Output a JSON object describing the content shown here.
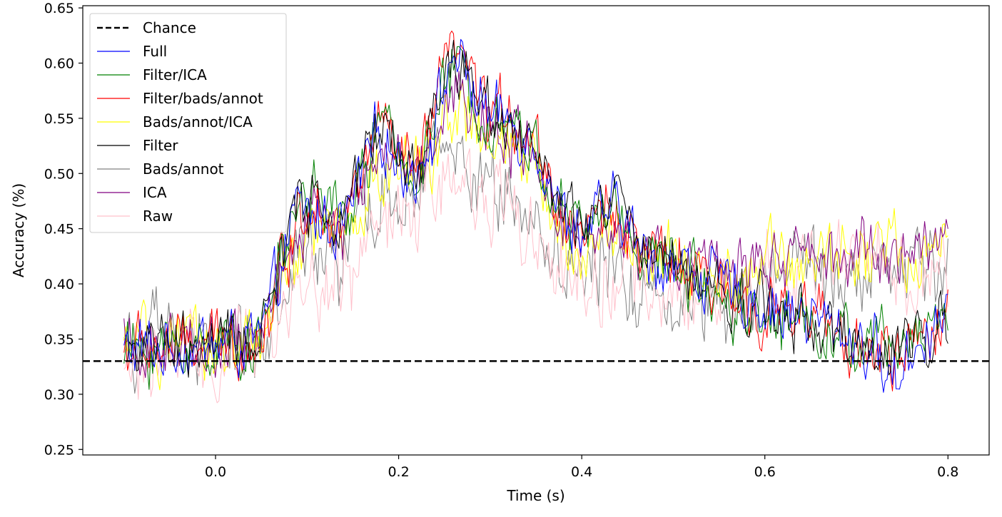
{
  "chart_data": {
    "type": "line",
    "title": "",
    "xlabel": "Time (s)",
    "ylabel": "Accuracy (%)",
    "xlim": [
      -0.145,
      0.845
    ],
    "ylim": [
      0.245,
      0.652
    ],
    "xticks": [
      0.0,
      0.2,
      0.4,
      0.6,
      0.8
    ],
    "xtick_labels": [
      "0.0",
      "0.2",
      "0.4",
      "0.6",
      "0.8"
    ],
    "yticks": [
      0.25,
      0.3,
      0.35,
      0.4,
      0.45,
      0.5,
      0.55,
      0.6,
      0.65
    ],
    "ytick_labels": [
      "0.25",
      "0.30",
      "0.35",
      "0.40",
      "0.45",
      "0.50",
      "0.55",
      "0.60",
      "0.65"
    ],
    "grid": false,
    "legend_position": "top-left",
    "chance": {
      "name": "Chance",
      "y": 0.33,
      "color": "#000000",
      "style": "dashed"
    },
    "x_start": -0.1,
    "x_end": 0.8,
    "series": [
      {
        "name": "Full",
        "color": "#0000ff",
        "noise": 0.022,
        "anchors": [
          [
            -0.1,
            0.34
          ],
          [
            0.0,
            0.345
          ],
          [
            0.05,
            0.35
          ],
          [
            0.07,
            0.41
          ],
          [
            0.09,
            0.47
          ],
          [
            0.11,
            0.46
          ],
          [
            0.14,
            0.45
          ],
          [
            0.16,
            0.5
          ],
          [
            0.18,
            0.54
          ],
          [
            0.2,
            0.51
          ],
          [
            0.22,
            0.5
          ],
          [
            0.24,
            0.55
          ],
          [
            0.26,
            0.61
          ],
          [
            0.28,
            0.58
          ],
          [
            0.3,
            0.55
          ],
          [
            0.32,
            0.55
          ],
          [
            0.35,
            0.53
          ],
          [
            0.38,
            0.46
          ],
          [
            0.4,
            0.45
          ],
          [
            0.44,
            0.47
          ],
          [
            0.47,
            0.42
          ],
          [
            0.5,
            0.42
          ],
          [
            0.55,
            0.4
          ],
          [
            0.6,
            0.38
          ],
          [
            0.65,
            0.37
          ],
          [
            0.7,
            0.35
          ],
          [
            0.72,
            0.34
          ],
          [
            0.74,
            0.31
          ],
          [
            0.76,
            0.34
          ],
          [
            0.8,
            0.38
          ]
        ]
      },
      {
        "name": "Filter/ICA",
        "color": "#008000",
        "noise": 0.022,
        "anchors": [
          [
            -0.1,
            0.34
          ],
          [
            0.0,
            0.345
          ],
          [
            0.05,
            0.35
          ],
          [
            0.07,
            0.42
          ],
          [
            0.09,
            0.47
          ],
          [
            0.11,
            0.49
          ],
          [
            0.14,
            0.45
          ],
          [
            0.16,
            0.5
          ],
          [
            0.18,
            0.55
          ],
          [
            0.2,
            0.51
          ],
          [
            0.22,
            0.5
          ],
          [
            0.24,
            0.55
          ],
          [
            0.26,
            0.6
          ],
          [
            0.28,
            0.57
          ],
          [
            0.3,
            0.55
          ],
          [
            0.32,
            0.55
          ],
          [
            0.35,
            0.52
          ],
          [
            0.38,
            0.46
          ],
          [
            0.4,
            0.45
          ],
          [
            0.44,
            0.47
          ],
          [
            0.47,
            0.42
          ],
          [
            0.5,
            0.42
          ],
          [
            0.55,
            0.39
          ],
          [
            0.6,
            0.37
          ],
          [
            0.65,
            0.37
          ],
          [
            0.7,
            0.34
          ],
          [
            0.72,
            0.35
          ],
          [
            0.74,
            0.34
          ],
          [
            0.76,
            0.35
          ],
          [
            0.8,
            0.38
          ]
        ]
      },
      {
        "name": "Filter/bads/annot",
        "color": "#ff0000",
        "noise": 0.022,
        "anchors": [
          [
            -0.1,
            0.34
          ],
          [
            0.0,
            0.345
          ],
          [
            0.05,
            0.35
          ],
          [
            0.07,
            0.41
          ],
          [
            0.09,
            0.46
          ],
          [
            0.11,
            0.48
          ],
          [
            0.14,
            0.45
          ],
          [
            0.16,
            0.5
          ],
          [
            0.18,
            0.55
          ],
          [
            0.2,
            0.51
          ],
          [
            0.22,
            0.5
          ],
          [
            0.24,
            0.56
          ],
          [
            0.26,
            0.62
          ],
          [
            0.28,
            0.58
          ],
          [
            0.3,
            0.55
          ],
          [
            0.32,
            0.56
          ],
          [
            0.35,
            0.53
          ],
          [
            0.38,
            0.46
          ],
          [
            0.4,
            0.45
          ],
          [
            0.44,
            0.47
          ],
          [
            0.47,
            0.42
          ],
          [
            0.5,
            0.42
          ],
          [
            0.55,
            0.39
          ],
          [
            0.6,
            0.38
          ],
          [
            0.65,
            0.37
          ],
          [
            0.7,
            0.34
          ],
          [
            0.72,
            0.34
          ],
          [
            0.74,
            0.33
          ],
          [
            0.76,
            0.34
          ],
          [
            0.8,
            0.37
          ]
        ]
      },
      {
        "name": "Bads/annot/ICA",
        "color": "#ffff00",
        "noise": 0.025,
        "anchors": [
          [
            -0.1,
            0.34
          ],
          [
            0.0,
            0.345
          ],
          [
            0.05,
            0.35
          ],
          [
            0.07,
            0.39
          ],
          [
            0.09,
            0.42
          ],
          [
            0.11,
            0.45
          ],
          [
            0.14,
            0.44
          ],
          [
            0.16,
            0.47
          ],
          [
            0.18,
            0.5
          ],
          [
            0.2,
            0.5
          ],
          [
            0.22,
            0.5
          ],
          [
            0.24,
            0.53
          ],
          [
            0.26,
            0.56
          ],
          [
            0.28,
            0.54
          ],
          [
            0.3,
            0.52
          ],
          [
            0.32,
            0.52
          ],
          [
            0.35,
            0.5
          ],
          [
            0.38,
            0.44
          ],
          [
            0.4,
            0.43
          ],
          [
            0.44,
            0.45
          ],
          [
            0.47,
            0.42
          ],
          [
            0.5,
            0.42
          ],
          [
            0.55,
            0.41
          ],
          [
            0.6,
            0.42
          ],
          [
            0.65,
            0.42
          ],
          [
            0.7,
            0.43
          ],
          [
            0.72,
            0.44
          ],
          [
            0.74,
            0.43
          ],
          [
            0.76,
            0.42
          ],
          [
            0.8,
            0.43
          ]
        ]
      },
      {
        "name": "Filter",
        "color": "#000000",
        "noise": 0.022,
        "anchors": [
          [
            -0.1,
            0.34
          ],
          [
            0.0,
            0.345
          ],
          [
            0.05,
            0.35
          ],
          [
            0.07,
            0.42
          ],
          [
            0.09,
            0.47
          ],
          [
            0.11,
            0.48
          ],
          [
            0.14,
            0.45
          ],
          [
            0.16,
            0.51
          ],
          [
            0.18,
            0.55
          ],
          [
            0.2,
            0.52
          ],
          [
            0.22,
            0.5
          ],
          [
            0.24,
            0.56
          ],
          [
            0.26,
            0.61
          ],
          [
            0.28,
            0.58
          ],
          [
            0.3,
            0.56
          ],
          [
            0.32,
            0.55
          ],
          [
            0.35,
            0.52
          ],
          [
            0.38,
            0.46
          ],
          [
            0.4,
            0.45
          ],
          [
            0.44,
            0.48
          ],
          [
            0.47,
            0.42
          ],
          [
            0.5,
            0.42
          ],
          [
            0.55,
            0.39
          ],
          [
            0.6,
            0.38
          ],
          [
            0.65,
            0.37
          ],
          [
            0.7,
            0.34
          ],
          [
            0.72,
            0.33
          ],
          [
            0.74,
            0.33
          ],
          [
            0.76,
            0.35
          ],
          [
            0.8,
            0.37
          ]
        ]
      },
      {
        "name": "Bads/annot",
        "color": "#808080",
        "noise": 0.03,
        "anchors": [
          [
            -0.1,
            0.35
          ],
          [
            0.0,
            0.345
          ],
          [
            0.05,
            0.35
          ],
          [
            0.07,
            0.38
          ],
          [
            0.09,
            0.42
          ],
          [
            0.11,
            0.42
          ],
          [
            0.14,
            0.42
          ],
          [
            0.16,
            0.45
          ],
          [
            0.18,
            0.47
          ],
          [
            0.2,
            0.48
          ],
          [
            0.22,
            0.49
          ],
          [
            0.24,
            0.51
          ],
          [
            0.26,
            0.52
          ],
          [
            0.28,
            0.5
          ],
          [
            0.3,
            0.49
          ],
          [
            0.32,
            0.48
          ],
          [
            0.35,
            0.46
          ],
          [
            0.38,
            0.42
          ],
          [
            0.4,
            0.41
          ],
          [
            0.44,
            0.41
          ],
          [
            0.47,
            0.39
          ],
          [
            0.5,
            0.39
          ],
          [
            0.55,
            0.39
          ],
          [
            0.6,
            0.4
          ],
          [
            0.65,
            0.41
          ],
          [
            0.7,
            0.41
          ],
          [
            0.72,
            0.41
          ],
          [
            0.74,
            0.42
          ],
          [
            0.76,
            0.41
          ],
          [
            0.8,
            0.41
          ]
        ]
      },
      {
        "name": "ICA",
        "color": "#800080",
        "noise": 0.022,
        "anchors": [
          [
            -0.1,
            0.34
          ],
          [
            0.0,
            0.345
          ],
          [
            0.05,
            0.35
          ],
          [
            0.07,
            0.4
          ],
          [
            0.09,
            0.45
          ],
          [
            0.11,
            0.47
          ],
          [
            0.14,
            0.45
          ],
          [
            0.16,
            0.49
          ],
          [
            0.18,
            0.52
          ],
          [
            0.2,
            0.51
          ],
          [
            0.22,
            0.5
          ],
          [
            0.24,
            0.55
          ],
          [
            0.26,
            0.58
          ],
          [
            0.28,
            0.56
          ],
          [
            0.3,
            0.54
          ],
          [
            0.32,
            0.54
          ],
          [
            0.35,
            0.51
          ],
          [
            0.38,
            0.46
          ],
          [
            0.4,
            0.45
          ],
          [
            0.44,
            0.46
          ],
          [
            0.47,
            0.42
          ],
          [
            0.5,
            0.42
          ],
          [
            0.55,
            0.42
          ],
          [
            0.6,
            0.42
          ],
          [
            0.65,
            0.42
          ],
          [
            0.7,
            0.42
          ],
          [
            0.72,
            0.43
          ],
          [
            0.74,
            0.42
          ],
          [
            0.76,
            0.42
          ],
          [
            0.8,
            0.44
          ]
        ]
      },
      {
        "name": "Raw",
        "color": "#ffc0cb",
        "noise": 0.03,
        "anchors": [
          [
            -0.1,
            0.33
          ],
          [
            0.0,
            0.335
          ],
          [
            0.05,
            0.34
          ],
          [
            0.07,
            0.37
          ],
          [
            0.09,
            0.39
          ],
          [
            0.11,
            0.4
          ],
          [
            0.14,
            0.4
          ],
          [
            0.16,
            0.43
          ],
          [
            0.18,
            0.45
          ],
          [
            0.2,
            0.46
          ],
          [
            0.22,
            0.47
          ],
          [
            0.24,
            0.49
          ],
          [
            0.26,
            0.5
          ],
          [
            0.28,
            0.49
          ],
          [
            0.3,
            0.48
          ],
          [
            0.32,
            0.47
          ],
          [
            0.35,
            0.45
          ],
          [
            0.38,
            0.41
          ],
          [
            0.4,
            0.4
          ],
          [
            0.44,
            0.4
          ],
          [
            0.47,
            0.39
          ],
          [
            0.5,
            0.39
          ],
          [
            0.55,
            0.39
          ],
          [
            0.6,
            0.41
          ],
          [
            0.65,
            0.42
          ],
          [
            0.7,
            0.42
          ],
          [
            0.72,
            0.42
          ],
          [
            0.74,
            0.42
          ],
          [
            0.76,
            0.41
          ],
          [
            0.8,
            0.41
          ]
        ]
      }
    ]
  }
}
